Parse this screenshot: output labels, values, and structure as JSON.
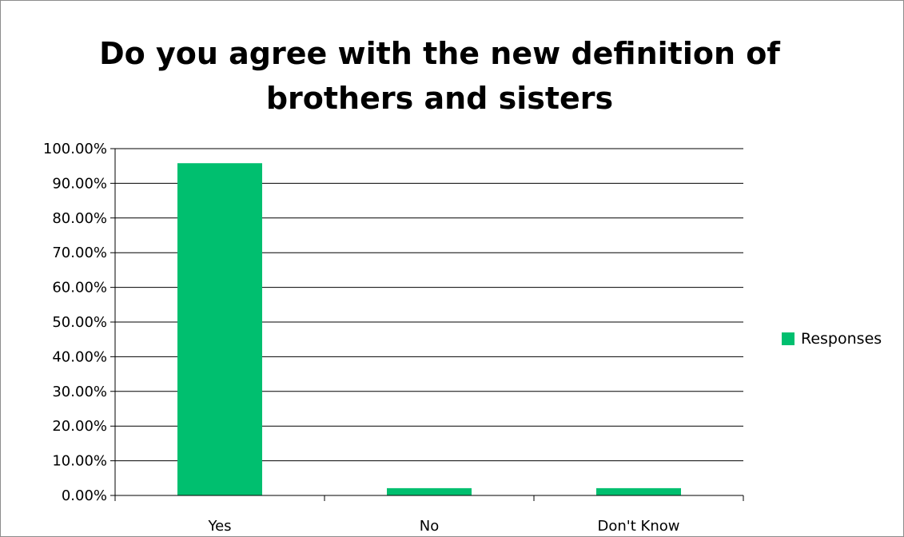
{
  "chart_data": {
    "type": "bar",
    "title": "Do you agree with the new definition of brothers and sisters",
    "title_lines": [
      "Do you agree with the new definition of",
      "brothers and sisters"
    ],
    "categories": [
      "Yes",
      "No",
      "Don't Know"
    ],
    "series": [
      {
        "name": "Responses",
        "values": [
          95.8,
          2.1,
          2.1
        ],
        "color": "#00BF6F"
      }
    ],
    "ylim": [
      0,
      100
    ],
    "y_ticks": [
      0,
      10,
      20,
      30,
      40,
      50,
      60,
      70,
      80,
      90,
      100
    ],
    "y_tick_labels": [
      "0.00%",
      "10.00%",
      "20.00%",
      "30.00%",
      "40.00%",
      "50.00%",
      "60.00%",
      "70.00%",
      "80.00%",
      "90.00%",
      "100.00%"
    ],
    "grid": true,
    "legend_position": "right"
  }
}
